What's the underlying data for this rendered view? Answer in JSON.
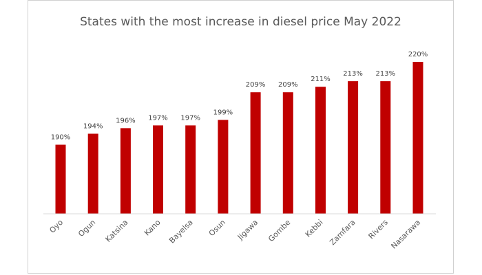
{
  "chart_data": {
    "type": "bar",
    "title": "States with the most increase in diesel price May 2022",
    "xlabel": "",
    "ylabel": "",
    "categories": [
      "Oyo",
      "Ogun",
      "Katsina",
      "Kano",
      "Bayelsa",
      "Osun",
      "Jigawa",
      "Gombe",
      "Kebbi",
      "Zamfara",
      "Rivers",
      "Nasarawa"
    ],
    "values": [
      190,
      194,
      196,
      197,
      197,
      199,
      209,
      209,
      211,
      213,
      213,
      220
    ],
    "data_labels": [
      "190%",
      "194%",
      "196%",
      "197%",
      "197%",
      "199%",
      "209%",
      "209%",
      "211%",
      "213%",
      "213%",
      "220%"
    ],
    "ylim": [
      165,
      225
    ],
    "grid": false,
    "legend": "none",
    "bar_color": "#C00000"
  }
}
